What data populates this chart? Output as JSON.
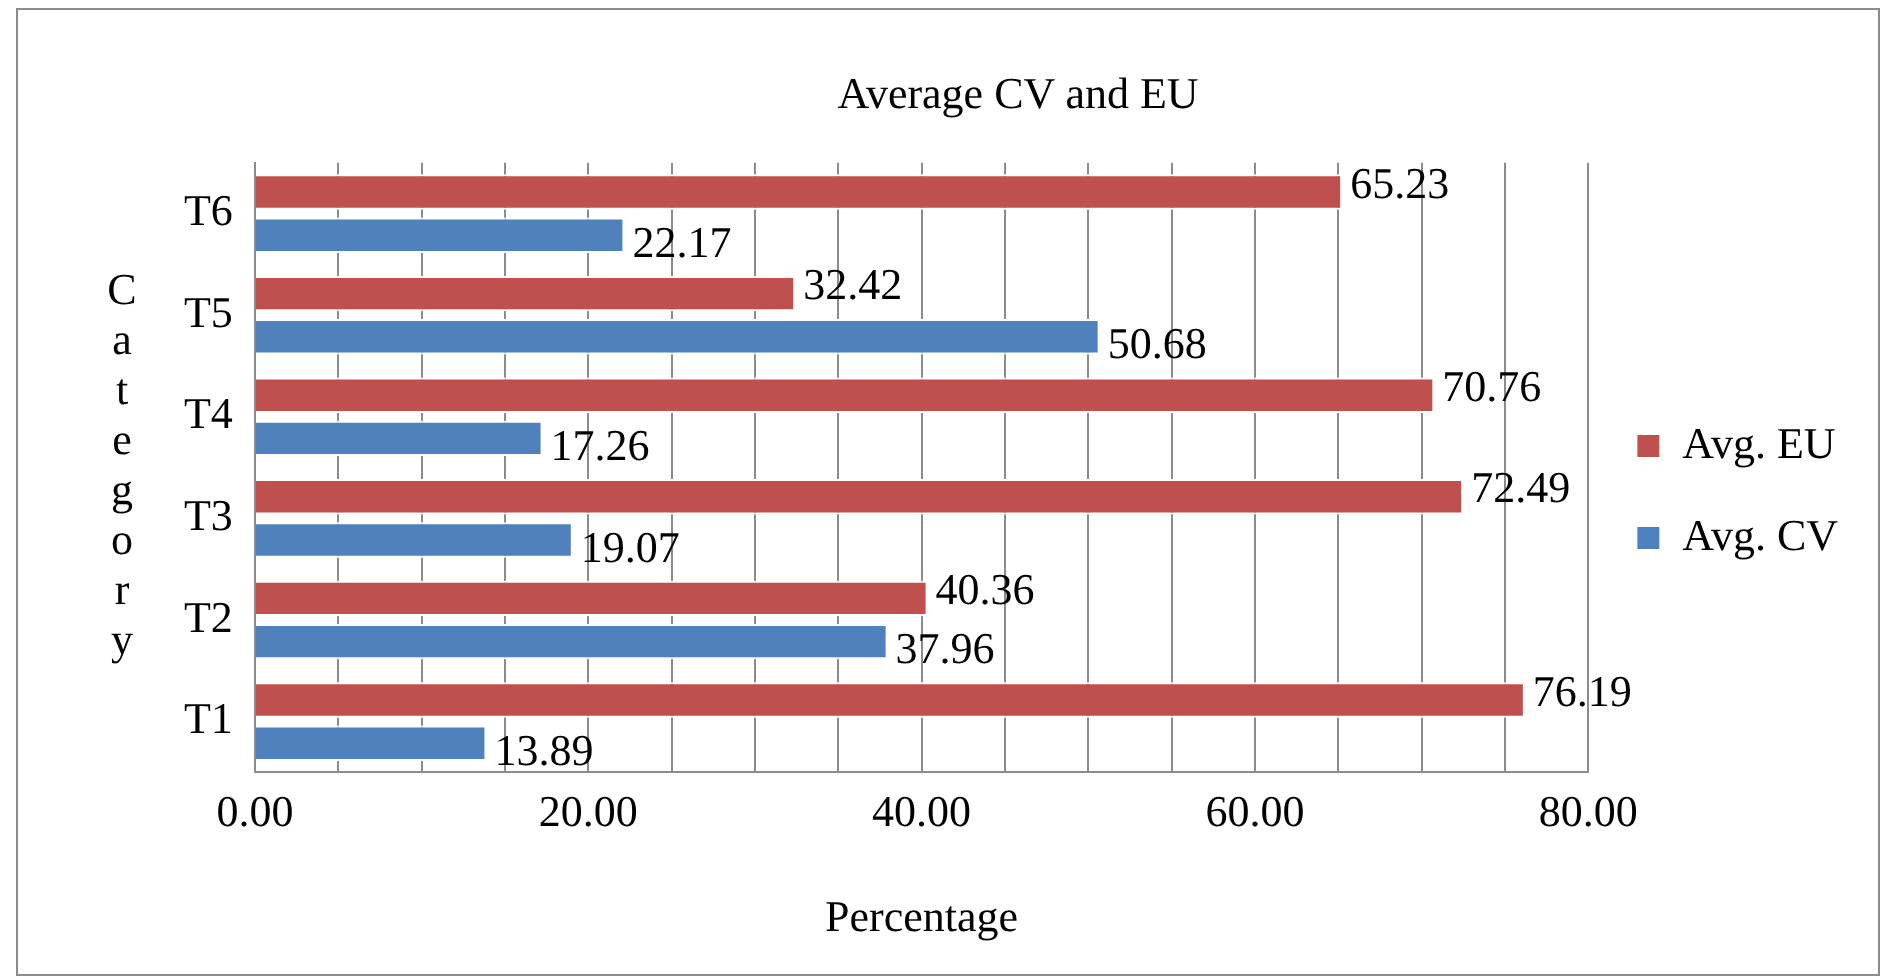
{
  "chart_data": {
    "type": "bar",
    "orientation": "horizontal",
    "title": "Average CV and EU",
    "xlabel": "Percentage",
    "ylabel": "Category",
    "categories": [
      "T6",
      "T5",
      "T4",
      "T3",
      "T2",
      "T1"
    ],
    "series": [
      {
        "name": "Avg. EU",
        "color": "#c0504d",
        "values": [
          65.23,
          32.42,
          70.76,
          72.49,
          40.36,
          76.19
        ]
      },
      {
        "name": "Avg. CV",
        "color": "#4f81bd",
        "values": [
          22.17,
          50.68,
          17.26,
          19.07,
          37.96,
          13.89
        ]
      }
    ],
    "xlim": [
      0,
      80
    ],
    "xticks": [
      {
        "value": 0,
        "label": "0.00"
      },
      {
        "value": 5,
        "label": null
      },
      {
        "value": 10,
        "label": null
      },
      {
        "value": 15,
        "label": null
      },
      {
        "value": 20,
        "label": "20.00"
      },
      {
        "value": 25,
        "label": null
      },
      {
        "value": 30,
        "label": null
      },
      {
        "value": 35,
        "label": null
      },
      {
        "value": 40,
        "label": "40.00"
      },
      {
        "value": 45,
        "label": null
      },
      {
        "value": 50,
        "label": null
      },
      {
        "value": 55,
        "label": null
      },
      {
        "value": 60,
        "label": "60.00"
      },
      {
        "value": 65,
        "label": null
      },
      {
        "value": 70,
        "label": null
      },
      {
        "value": 75,
        "label": null
      },
      {
        "value": 80,
        "label": "80.00"
      }
    ],
    "grid": "x",
    "legend": "right",
    "data_labels": true
  }
}
